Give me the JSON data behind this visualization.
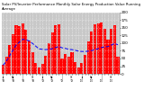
{
  "title": "Solar PV/Inverter Performance Monthly Solar Energy Production Value Running Average",
  "bar_color": "#FF0000",
  "line_color": "#0000FF",
  "background_color": "#FFFFFF",
  "grid_color": "#FFFFFF",
  "plot_bg": "#C8C8C8",
  "values": [
    28,
    55,
    95,
    130,
    160,
    155,
    165,
    145,
    110,
    70,
    35,
    20,
    32,
    60,
    100,
    135,
    158,
    162,
    50,
    65,
    55,
    72,
    38,
    22,
    35,
    62,
    105,
    138,
    162,
    165,
    168,
    148,
    112,
    148,
    158,
    55
  ],
  "running_avg": [
    28,
    41,
    59,
    77,
    94,
    104,
    113,
    111,
    107,
    99,
    90,
    81,
    80,
    79,
    80,
    82,
    86,
    89,
    85,
    83,
    80,
    79,
    77,
    74,
    73,
    73,
    74,
    76,
    79,
    82,
    86,
    88,
    89,
    94,
    99,
    95
  ],
  "xtick_labels": [
    "",
    "",
    "",
    "",
    "",
    "",
    "",
    "",
    "",
    "",
    "",
    "",
    "",
    "",
    "",
    "",
    "",
    "",
    "",
    "",
    "",
    "",
    "",
    "",
    "",
    "",
    "",
    "",
    "",
    "",
    "",
    "",
    "",
    "",
    "",
    ""
  ],
  "ylim": [
    0,
    200
  ],
  "ytick_vals": [
    0,
    25,
    50,
    75,
    100,
    125,
    150,
    175,
    200
  ],
  "ytick_labels": [
    "0",
    "25",
    "50",
    "75",
    "100",
    "125",
    "150",
    "175",
    "200"
  ],
  "title_fontsize": 2.8,
  "tick_fontsize": 3.0,
  "figsize": [
    1.6,
    1.0
  ],
  "dpi": 100
}
